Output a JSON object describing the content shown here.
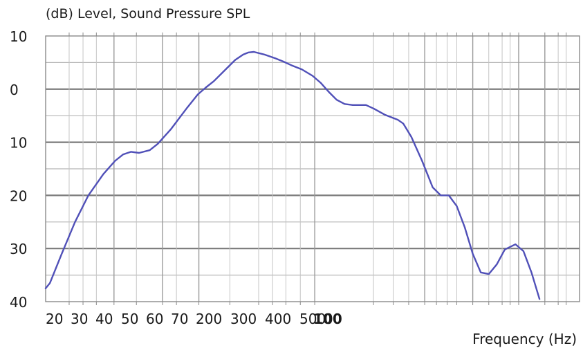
{
  "chart_data": {
    "type": "line",
    "title": "(dB)  Level, Sound Pressure SPL",
    "xlabel": "Frequency (Hz)",
    "ylabel": "",
    "y_tick_labels": [
      "10",
      "0",
      "10",
      "20",
      "30",
      "40"
    ],
    "y_tick_values": [
      10,
      0,
      -10,
      -20,
      -30,
      -40
    ],
    "ylim": [
      -40,
      10
    ],
    "x_tick_labels": [
      "20",
      "30",
      "40",
      "50",
      "60",
      "70",
      "200",
      "300",
      "400",
      "500",
      "100"
    ],
    "x_tick_overlap_suffix": "0",
    "grid": true,
    "series": [
      {
        "color": "#5050b8",
        "points": [
          [
            0.0,
            -37.5
          ],
          [
            0.8,
            -36.5
          ],
          [
            3.0,
            -31.0
          ],
          [
            5.5,
            -25.0
          ],
          [
            8.0,
            -20.0
          ],
          [
            10.8,
            -16.0
          ],
          [
            13.0,
            -13.5
          ],
          [
            14.5,
            -12.3
          ],
          [
            16.0,
            -11.8
          ],
          [
            17.5,
            -12.0
          ],
          [
            19.5,
            -11.5
          ],
          [
            21.0,
            -10.3
          ],
          [
            23.5,
            -7.5
          ],
          [
            26.5,
            -3.5
          ],
          [
            28.5,
            -1.0
          ],
          [
            30.0,
            0.3
          ],
          [
            31.5,
            1.5
          ],
          [
            34.0,
            4.0
          ],
          [
            35.5,
            5.5
          ],
          [
            37.0,
            6.5
          ],
          [
            38.0,
            6.9
          ],
          [
            39.0,
            7.0
          ],
          [
            41.0,
            6.5
          ],
          [
            43.0,
            5.8
          ],
          [
            44.5,
            5.2
          ],
          [
            46.0,
            4.5
          ],
          [
            48.0,
            3.7
          ],
          [
            50.0,
            2.5
          ],
          [
            51.5,
            1.2
          ],
          [
            53.0,
            -0.5
          ],
          [
            54.5,
            -2.0
          ],
          [
            56.0,
            -2.8
          ],
          [
            57.5,
            -3.0
          ],
          [
            59.0,
            -3.0
          ],
          [
            60.0,
            -3.0
          ],
          [
            61.5,
            -3.7
          ],
          [
            63.5,
            -4.8
          ],
          [
            66.0,
            -5.8
          ],
          [
            67.0,
            -6.5
          ],
          [
            68.5,
            -9.0
          ],
          [
            70.5,
            -13.5
          ],
          [
            72.5,
            -18.5
          ],
          [
            74.0,
            -20.0
          ],
          [
            75.5,
            -20.0
          ],
          [
            77.0,
            -22.0
          ],
          [
            78.5,
            -26.0
          ],
          [
            80.0,
            -31.0
          ],
          [
            81.5,
            -34.5
          ],
          [
            83.0,
            -34.8
          ],
          [
            84.5,
            -33.0
          ],
          [
            86.0,
            -30.2
          ],
          [
            88.0,
            -29.2
          ],
          [
            89.5,
            -30.5
          ],
          [
            91.0,
            -34.5
          ],
          [
            92.5,
            -39.5
          ]
        ]
      }
    ]
  }
}
